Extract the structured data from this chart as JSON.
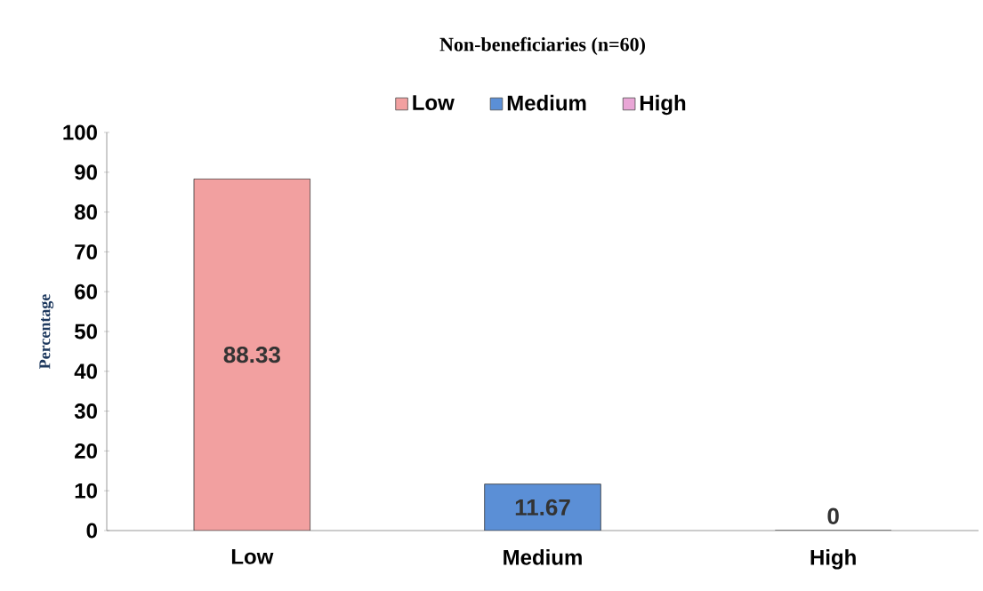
{
  "chart_data": {
    "type": "bar",
    "title": "Non-beneficiaries (n=60)",
    "ylabel": "Percentage",
    "categories": [
      "Low",
      "Medium",
      "High"
    ],
    "series": [
      {
        "name": "Low",
        "color": "#f2a0a0",
        "values": [
          88.33,
          null,
          null
        ]
      },
      {
        "name": "Medium",
        "color": "#5b8fd6",
        "values": [
          null,
          11.67,
          null
        ]
      },
      {
        "name": "High",
        "color": "#e9a6d6",
        "values": [
          null,
          null,
          0
        ]
      }
    ],
    "ylim": [
      0,
      100
    ],
    "yticks": [
      0,
      10,
      20,
      30,
      40,
      50,
      60,
      70,
      80,
      90,
      100
    ],
    "data_labels": true,
    "legend": "top",
    "grid": false
  }
}
